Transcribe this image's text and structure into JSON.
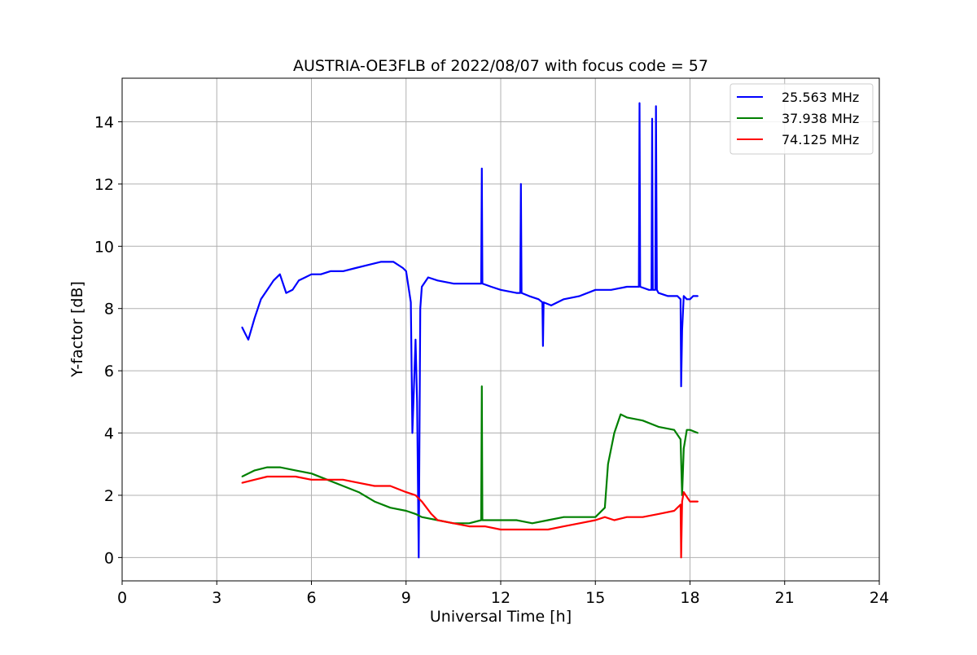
{
  "chart_data": {
    "type": "line",
    "title": "AUSTRIA-OE3FLB of 2022/08/07 with focus code = 57",
    "xlabel": "Universal Time [h]",
    "ylabel": "Y-factor [dB]",
    "xlim": [
      0,
      24
    ],
    "ylim": [
      -0.75,
      15.4
    ],
    "xticks": [
      0,
      3,
      6,
      9,
      12,
      15,
      18,
      21,
      24
    ],
    "yticks": [
      0,
      2,
      4,
      6,
      8,
      10,
      12,
      14
    ],
    "grid": true,
    "legend_position": "top-right",
    "series": [
      {
        "name": "25.563 MHz",
        "color": "#0000ff",
        "x": [
          3.8,
          3.9,
          4.0,
          4.2,
          4.4,
          4.6,
          4.8,
          5.0,
          5.2,
          5.4,
          5.6,
          5.8,
          6.0,
          6.3,
          6.6,
          7.0,
          7.4,
          7.8,
          8.2,
          8.6,
          8.9,
          9.0,
          9.15,
          9.2,
          9.3,
          9.35,
          9.4,
          9.45,
          9.5,
          9.7,
          10.0,
          10.5,
          11.0,
          11.38,
          11.4,
          11.42,
          11.7,
          12.0,
          12.5,
          12.62,
          12.64,
          12.66,
          12.9,
          13.2,
          13.32,
          13.34,
          13.36,
          13.6,
          14.0,
          14.5,
          15.0,
          15.5,
          16.0,
          16.38,
          16.4,
          16.42,
          16.7,
          16.78,
          16.8,
          16.82,
          16.9,
          16.92,
          16.95,
          17.0,
          17.3,
          17.6,
          17.7,
          17.72,
          17.75,
          17.8,
          17.9,
          18.0,
          18.1,
          18.25
        ],
        "y": [
          7.4,
          7.2,
          7.0,
          7.7,
          8.3,
          8.6,
          8.9,
          9.1,
          8.5,
          8.6,
          8.9,
          9.0,
          9.1,
          9.1,
          9.2,
          9.2,
          9.3,
          9.4,
          9.5,
          9.5,
          9.3,
          9.2,
          8.2,
          4.0,
          7.0,
          5.0,
          0.0,
          8.0,
          8.7,
          9.0,
          8.9,
          8.8,
          8.8,
          8.8,
          12.5,
          8.8,
          8.7,
          8.6,
          8.5,
          8.5,
          12.0,
          8.5,
          8.4,
          8.3,
          8.2,
          6.8,
          8.2,
          8.1,
          8.3,
          8.4,
          8.6,
          8.6,
          8.7,
          8.7,
          14.6,
          8.7,
          8.6,
          8.6,
          14.1,
          8.6,
          8.6,
          14.5,
          8.6,
          8.5,
          8.4,
          8.4,
          8.3,
          5.5,
          7.3,
          8.4,
          8.3,
          8.3,
          8.4,
          8.4
        ]
      },
      {
        "name": "37.938 MHz",
        "color": "#008000",
        "x": [
          3.8,
          4.2,
          4.6,
          5.0,
          5.5,
          6.0,
          6.5,
          7.0,
          7.5,
          8.0,
          8.5,
          9.0,
          9.3,
          9.5,
          10.0,
          10.5,
          11.0,
          11.38,
          11.4,
          11.42,
          12.0,
          12.5,
          13.0,
          13.5,
          14.0,
          14.5,
          15.0,
          15.3,
          15.4,
          15.6,
          15.8,
          16.0,
          16.5,
          17.0,
          17.5,
          17.7,
          17.75,
          17.8,
          17.9,
          18.0,
          18.25
        ],
        "y": [
          2.6,
          2.8,
          2.9,
          2.9,
          2.8,
          2.7,
          2.5,
          2.3,
          2.1,
          1.8,
          1.6,
          1.5,
          1.4,
          1.3,
          1.2,
          1.1,
          1.1,
          1.2,
          5.5,
          1.2,
          1.2,
          1.2,
          1.1,
          1.2,
          1.3,
          1.3,
          1.3,
          1.6,
          3.0,
          4.0,
          4.6,
          4.5,
          4.4,
          4.2,
          4.1,
          3.8,
          2.0,
          3.5,
          4.1,
          4.1,
          4.0
        ]
      },
      {
        "name": "74.125 MHz",
        "color": "#ff0000",
        "x": [
          3.8,
          4.2,
          4.6,
          5.0,
          5.5,
          6.0,
          6.3,
          6.5,
          7.0,
          7.5,
          8.0,
          8.5,
          9.0,
          9.3,
          9.5,
          9.8,
          10.0,
          10.5,
          11.0,
          11.5,
          12.0,
          12.5,
          13.0,
          13.5,
          14.0,
          14.5,
          15.0,
          15.3,
          15.6,
          16.0,
          16.5,
          17.0,
          17.5,
          17.7,
          17.72,
          17.75,
          17.8,
          18.0,
          18.25
        ],
        "y": [
          2.4,
          2.5,
          2.6,
          2.6,
          2.6,
          2.5,
          2.5,
          2.5,
          2.5,
          2.4,
          2.3,
          2.3,
          2.1,
          2.0,
          1.8,
          1.4,
          1.2,
          1.1,
          1.0,
          1.0,
          0.9,
          0.9,
          0.9,
          0.9,
          1.0,
          1.1,
          1.2,
          1.3,
          1.2,
          1.3,
          1.3,
          1.4,
          1.5,
          1.7,
          0.0,
          1.8,
          2.1,
          1.8,
          1.8
        ]
      }
    ]
  }
}
